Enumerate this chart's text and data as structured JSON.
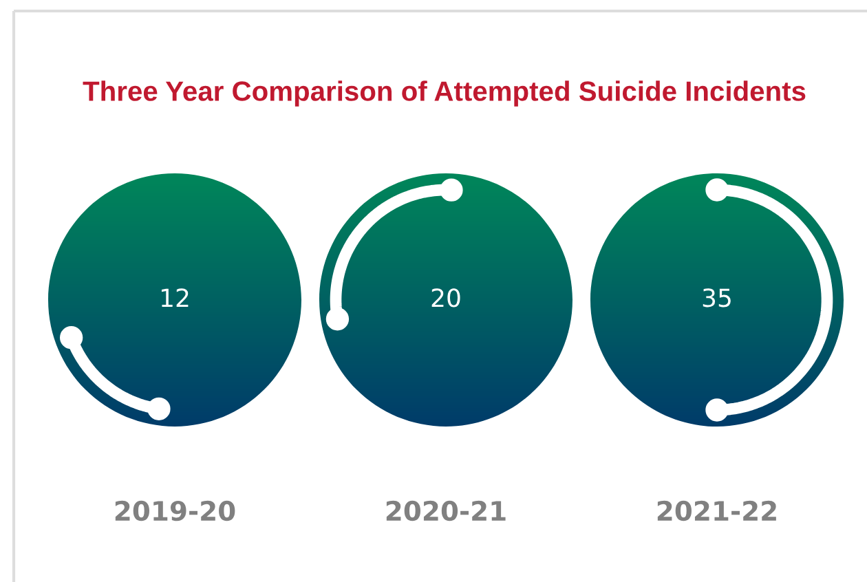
{
  "chart_data": {
    "type": "other",
    "title": "Three Year Comparison of Attempted Suicide Incidents",
    "categories": [
      "2019-20",
      "2020-21",
      "2021-22"
    ],
    "values": [
      12,
      20,
      35
    ],
    "data_labels": true
  }
}
